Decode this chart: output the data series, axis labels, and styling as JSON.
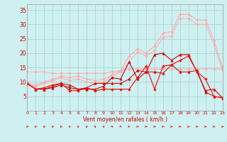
{
  "background_color": "#cff0f0",
  "grid_color": "#aad4d4",
  "x_label": "Vent moyen/en rafales ( km/h )",
  "x_min": 0,
  "x_max": 23,
  "y_min": 0,
  "y_max": 37,
  "y_ticks": [
    0,
    5,
    10,
    15,
    20,
    25,
    30,
    35
  ],
  "lines": [
    {
      "color": "#ffaaaa",
      "linewidth": 0.7,
      "marker": "D",
      "markersize": 1.8,
      "data_x": [
        0,
        1,
        2,
        3,
        4,
        5,
        6,
        7,
        8,
        9,
        10,
        11,
        12,
        13,
        14,
        15,
        16,
        17,
        18,
        19,
        20,
        21,
        22,
        23
      ],
      "data_y": [
        13.5,
        13.5,
        13.5,
        13.0,
        13.0,
        13.0,
        13.0,
        13.0,
        13.0,
        13.0,
        13.5,
        14.0,
        14.5,
        14.5,
        14.5,
        14.5,
        14.5,
        14.5,
        14.5,
        14.5,
        14.5,
        14.5,
        14.5,
        14.5
      ]
    },
    {
      "color": "#ffaaaa",
      "linewidth": 0.8,
      "marker": "D",
      "markersize": 1.8,
      "data_x": [
        0,
        1,
        2,
        3,
        4,
        5,
        6,
        7,
        8,
        9,
        10,
        11,
        12,
        13,
        14,
        15,
        16,
        17,
        18,
        19,
        20,
        21,
        22,
        23
      ],
      "data_y": [
        9.5,
        9.0,
        10.0,
        11.0,
        12.0,
        11.5,
        12.0,
        11.0,
        10.5,
        11.0,
        12.5,
        14.0,
        19.0,
        21.5,
        20.0,
        22.5,
        27.0,
        27.5,
        33.5,
        33.5,
        31.5,
        31.5,
        24.5,
        15.0
      ]
    },
    {
      "color": "#ffaaaa",
      "linewidth": 0.7,
      "marker": "D",
      "markersize": 1.8,
      "data_x": [
        0,
        1,
        2,
        3,
        4,
        5,
        6,
        7,
        8,
        9,
        10,
        11,
        12,
        13,
        14,
        15,
        16,
        17,
        18,
        19,
        20,
        21,
        22,
        23
      ],
      "data_y": [
        9.0,
        8.5,
        9.5,
        10.5,
        11.5,
        10.5,
        11.0,
        10.0,
        9.5,
        10.0,
        12.0,
        13.5,
        17.0,
        20.5,
        19.0,
        21.0,
        25.5,
        26.0,
        32.0,
        32.0,
        30.0,
        30.0,
        23.0,
        14.0
      ]
    },
    {
      "color": "#cc0000",
      "linewidth": 0.8,
      "marker": "^",
      "markersize": 2.5,
      "data_x": [
        0,
        1,
        2,
        3,
        4,
        5,
        6,
        7,
        8,
        9,
        10,
        11,
        12,
        13,
        14,
        15,
        16,
        17,
        18,
        19,
        20,
        21,
        22,
        23
      ],
      "data_y": [
        9.5,
        7.5,
        7.5,
        8.0,
        9.0,
        8.0,
        7.5,
        7.5,
        7.5,
        8.5,
        11.5,
        11.0,
        17.0,
        11.0,
        13.5,
        19.5,
        20.0,
        17.5,
        19.5,
        19.5,
        13.5,
        7.0,
        7.5,
        4.5
      ]
    },
    {
      "color": "#cc0000",
      "linewidth": 0.7,
      "marker": "^",
      "markersize": 2.5,
      "data_x": [
        0,
        1,
        2,
        3,
        4,
        5,
        6,
        7,
        8,
        9,
        10,
        11,
        12,
        13,
        14,
        15,
        16,
        17,
        18,
        19,
        20,
        21,
        22,
        23
      ],
      "data_y": [
        9.5,
        7.5,
        7.5,
        8.5,
        9.5,
        9.0,
        7.5,
        8.0,
        9.5,
        9.5,
        9.5,
        9.5,
        11.0,
        14.0,
        13.5,
        13.5,
        13.0,
        16.0,
        13.5,
        13.5,
        14.0,
        6.5,
        5.0,
        4.5
      ]
    },
    {
      "color": "#ff0000",
      "linewidth": 0.8,
      "marker": "D",
      "markersize": 1.8,
      "data_x": [
        0,
        1,
        2,
        3,
        4,
        5,
        6,
        7,
        8,
        9,
        10,
        11,
        12,
        13,
        14,
        15,
        16,
        17,
        18,
        19,
        20,
        21,
        22,
        23
      ],
      "data_y": [
        9.5,
        7.5,
        8.0,
        9.0,
        9.5,
        7.0,
        7.0,
        8.0,
        7.0,
        7.5,
        7.5,
        7.5,
        7.5,
        11.5,
        15.5,
        7.5,
        15.5,
        16.0,
        17.5,
        19.0,
        13.5,
        11.0,
        5.0,
        4.5
      ]
    }
  ],
  "arrow_angles": [
    -135,
    -130,
    -125,
    -120,
    -115,
    -110,
    -105,
    -100,
    -60,
    -50,
    -30,
    -20,
    -10,
    0,
    0,
    0,
    0,
    0,
    0,
    0,
    0,
    0,
    0,
    0
  ]
}
